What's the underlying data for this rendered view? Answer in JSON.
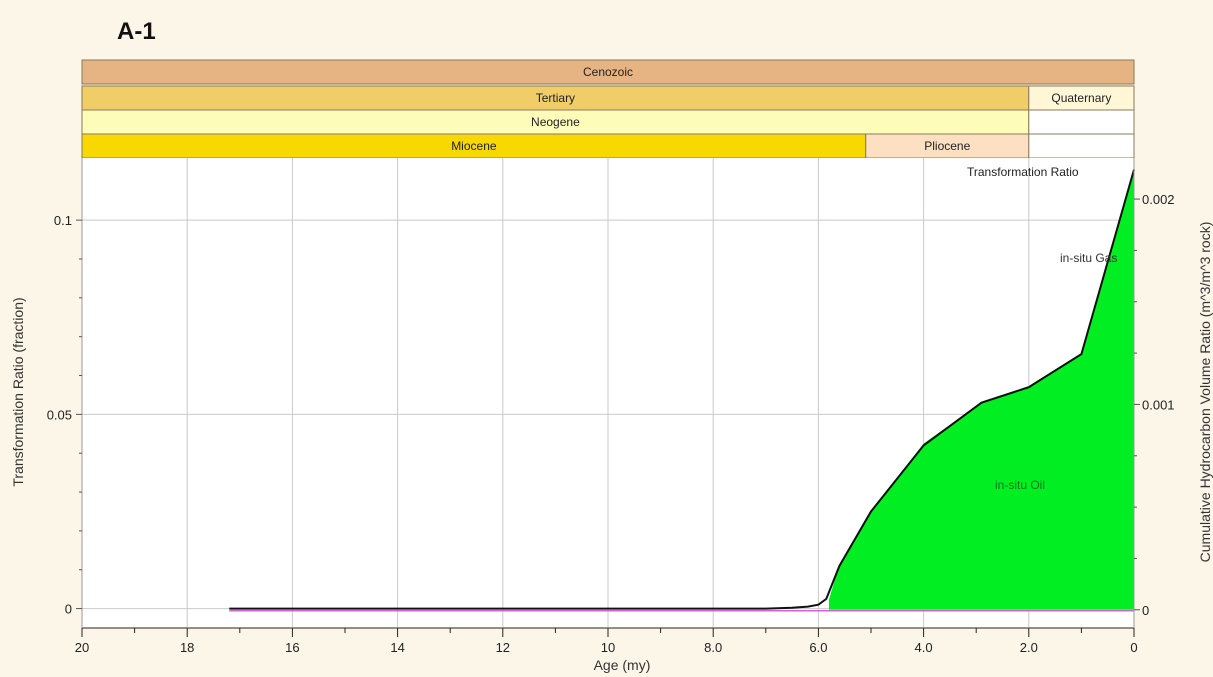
{
  "title": "A-1",
  "chart_data": {
    "type": "area",
    "title": "A-1",
    "xlabel": "Age (my)",
    "ylabel": "Transformation Ratio (fraction)",
    "y2label": "Cumulative Hydrocarbon Volume Ratio (m^3/m^3 rock)",
    "xlim": [
      20,
      0
    ],
    "ylim": [
      -0.005,
      0.116
    ],
    "y2lim": [
      -8.87e-05,
      0.0022
    ],
    "xticks": [
      "20",
      "18",
      "16",
      "14",
      "12",
      "10",
      "8.0",
      "6.0",
      "4.0",
      "2.0",
      "0"
    ],
    "yticks": [
      "0",
      "0.05",
      "0.1"
    ],
    "y2ticks": [
      "0",
      "0.001",
      "0.002"
    ],
    "grid": true,
    "time_bands": [
      {
        "row": "era",
        "items": [
          {
            "label": "Cenozoic",
            "start": 20,
            "end": 0,
            "color": "#e6b382"
          }
        ]
      },
      {
        "row": "period",
        "items": [
          {
            "label": "Tertiary",
            "start": 20,
            "end": 2,
            "color": "#f1cd68"
          },
          {
            "label": "Quaternary",
            "start": 2,
            "end": 0,
            "color": "#fff7d6"
          }
        ]
      },
      {
        "row": "subperiod",
        "items": [
          {
            "label": "Neogene",
            "start": 20,
            "end": 2,
            "color": "#fdfcb9"
          },
          {
            "label": "",
            "start": 2,
            "end": 0,
            "color": "#ffffff"
          }
        ]
      },
      {
        "row": "epoch",
        "items": [
          {
            "label": "Miocene",
            "start": 20,
            "end": 5.1,
            "color": "#f8d800"
          },
          {
            "label": "Pliocene",
            "start": 5.1,
            "end": 2,
            "color": "#fde0c2"
          },
          {
            "label": "",
            "start": 2,
            "end": 0,
            "color": "#ffffff"
          }
        ]
      }
    ],
    "series": [
      {
        "name": "Transformation Ratio",
        "axis": "left",
        "color": "#111111",
        "x": [
          17.2,
          7.0,
          6.5,
          6.2,
          6.0,
          5.85,
          5.6,
          5.0,
          4.0,
          2.9,
          2.0,
          1.0,
          0.0
        ],
        "y": [
          0.0,
          0.0,
          0.0002,
          0.0005,
          0.001,
          0.0025,
          0.011,
          0.025,
          0.042,
          0.053,
          0.057,
          0.0655,
          0.113
        ]
      },
      {
        "name": "in-situ Oil",
        "axis": "right",
        "color": "#00ee22",
        "x": [
          5.8,
          5.6,
          5.0,
          4.0,
          2.9,
          2.0,
          1.0,
          0.0
        ],
        "y": [
          5e-05,
          0.00022,
          0.00048,
          0.00081,
          0.00101,
          0.00109,
          0.00125,
          0.00214
        ]
      },
      {
        "name": "in-situ Gas",
        "axis": "right",
        "color": "#cc66cc",
        "x": [
          17.2,
          0.0
        ],
        "y": [
          0.0,
          0.0
        ]
      }
    ],
    "annotations": [
      "Transformation Ratio",
      "in-situ Gas",
      "in-situ Oil"
    ]
  }
}
